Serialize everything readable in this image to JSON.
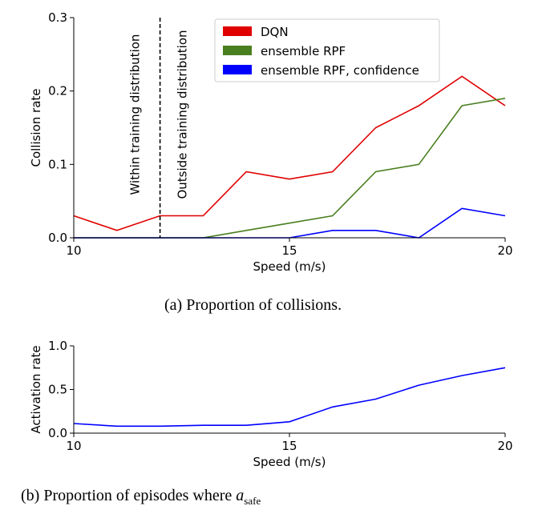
{
  "chart_data": [
    {
      "type": "line",
      "title": "",
      "xlabel": "Speed (m/s)",
      "ylabel": "Collision rate",
      "xlim": [
        10,
        20
      ],
      "ylim": [
        0,
        0.3
      ],
      "xticks": [
        "10",
        "15",
        "20"
      ],
      "yticks": [
        "0.0",
        "0.1",
        "0.2",
        "0.3"
      ],
      "x": [
        10,
        11,
        12,
        13,
        14,
        15,
        16,
        17,
        18,
        19,
        20
      ],
      "series": [
        {
          "name": "DQN",
          "color": "#e00000",
          "values": [
            0.03,
            0.01,
            0.03,
            0.03,
            0.09,
            0.08,
            0.09,
            0.15,
            0.18,
            0.22,
            0.18
          ]
        },
        {
          "name": "ensemble RPF",
          "color": "#4a7f1f",
          "values": [
            0,
            0,
            0,
            0,
            0.01,
            0.02,
            0.03,
            0.09,
            0.1,
            0.18,
            0.19
          ]
        },
        {
          "name": "ensemble RPF, confidence",
          "color": "#0000ff",
          "values": [
            0,
            0,
            0,
            0,
            0,
            0,
            0.01,
            0.01,
            0,
            0.04,
            0.03
          ]
        }
      ],
      "legend_position": "top-right",
      "vline": {
        "x": 12,
        "style": "dashed"
      },
      "annotations": [
        "Within training distribution",
        "Outside training distribution"
      ],
      "grid": false
    },
    {
      "type": "line",
      "title": "",
      "xlabel": "Speed (m/s)",
      "ylabel": "Activation rate",
      "xlim": [
        10,
        20
      ],
      "ylim": [
        0,
        1.0
      ],
      "xticks": [
        "10",
        "15",
        "20"
      ],
      "yticks": [
        "0.0",
        "0.5",
        "1.0"
      ],
      "x": [
        10,
        11,
        12,
        13,
        14,
        15,
        16,
        17,
        18,
        19,
        20
      ],
      "series": [
        {
          "name": "activation",
          "color": "#0000ff",
          "values": [
            0.11,
            0.08,
            0.08,
            0.09,
            0.09,
            0.13,
            0.3,
            0.39,
            0.55,
            0.66,
            0.75
          ]
        }
      ],
      "grid": false
    }
  ],
  "captions": {
    "a": "(a) Proportion of collisions.",
    "b_text": "(b) Proportion of episodes where ",
    "b_var": "a",
    "b_sub": "safe"
  }
}
